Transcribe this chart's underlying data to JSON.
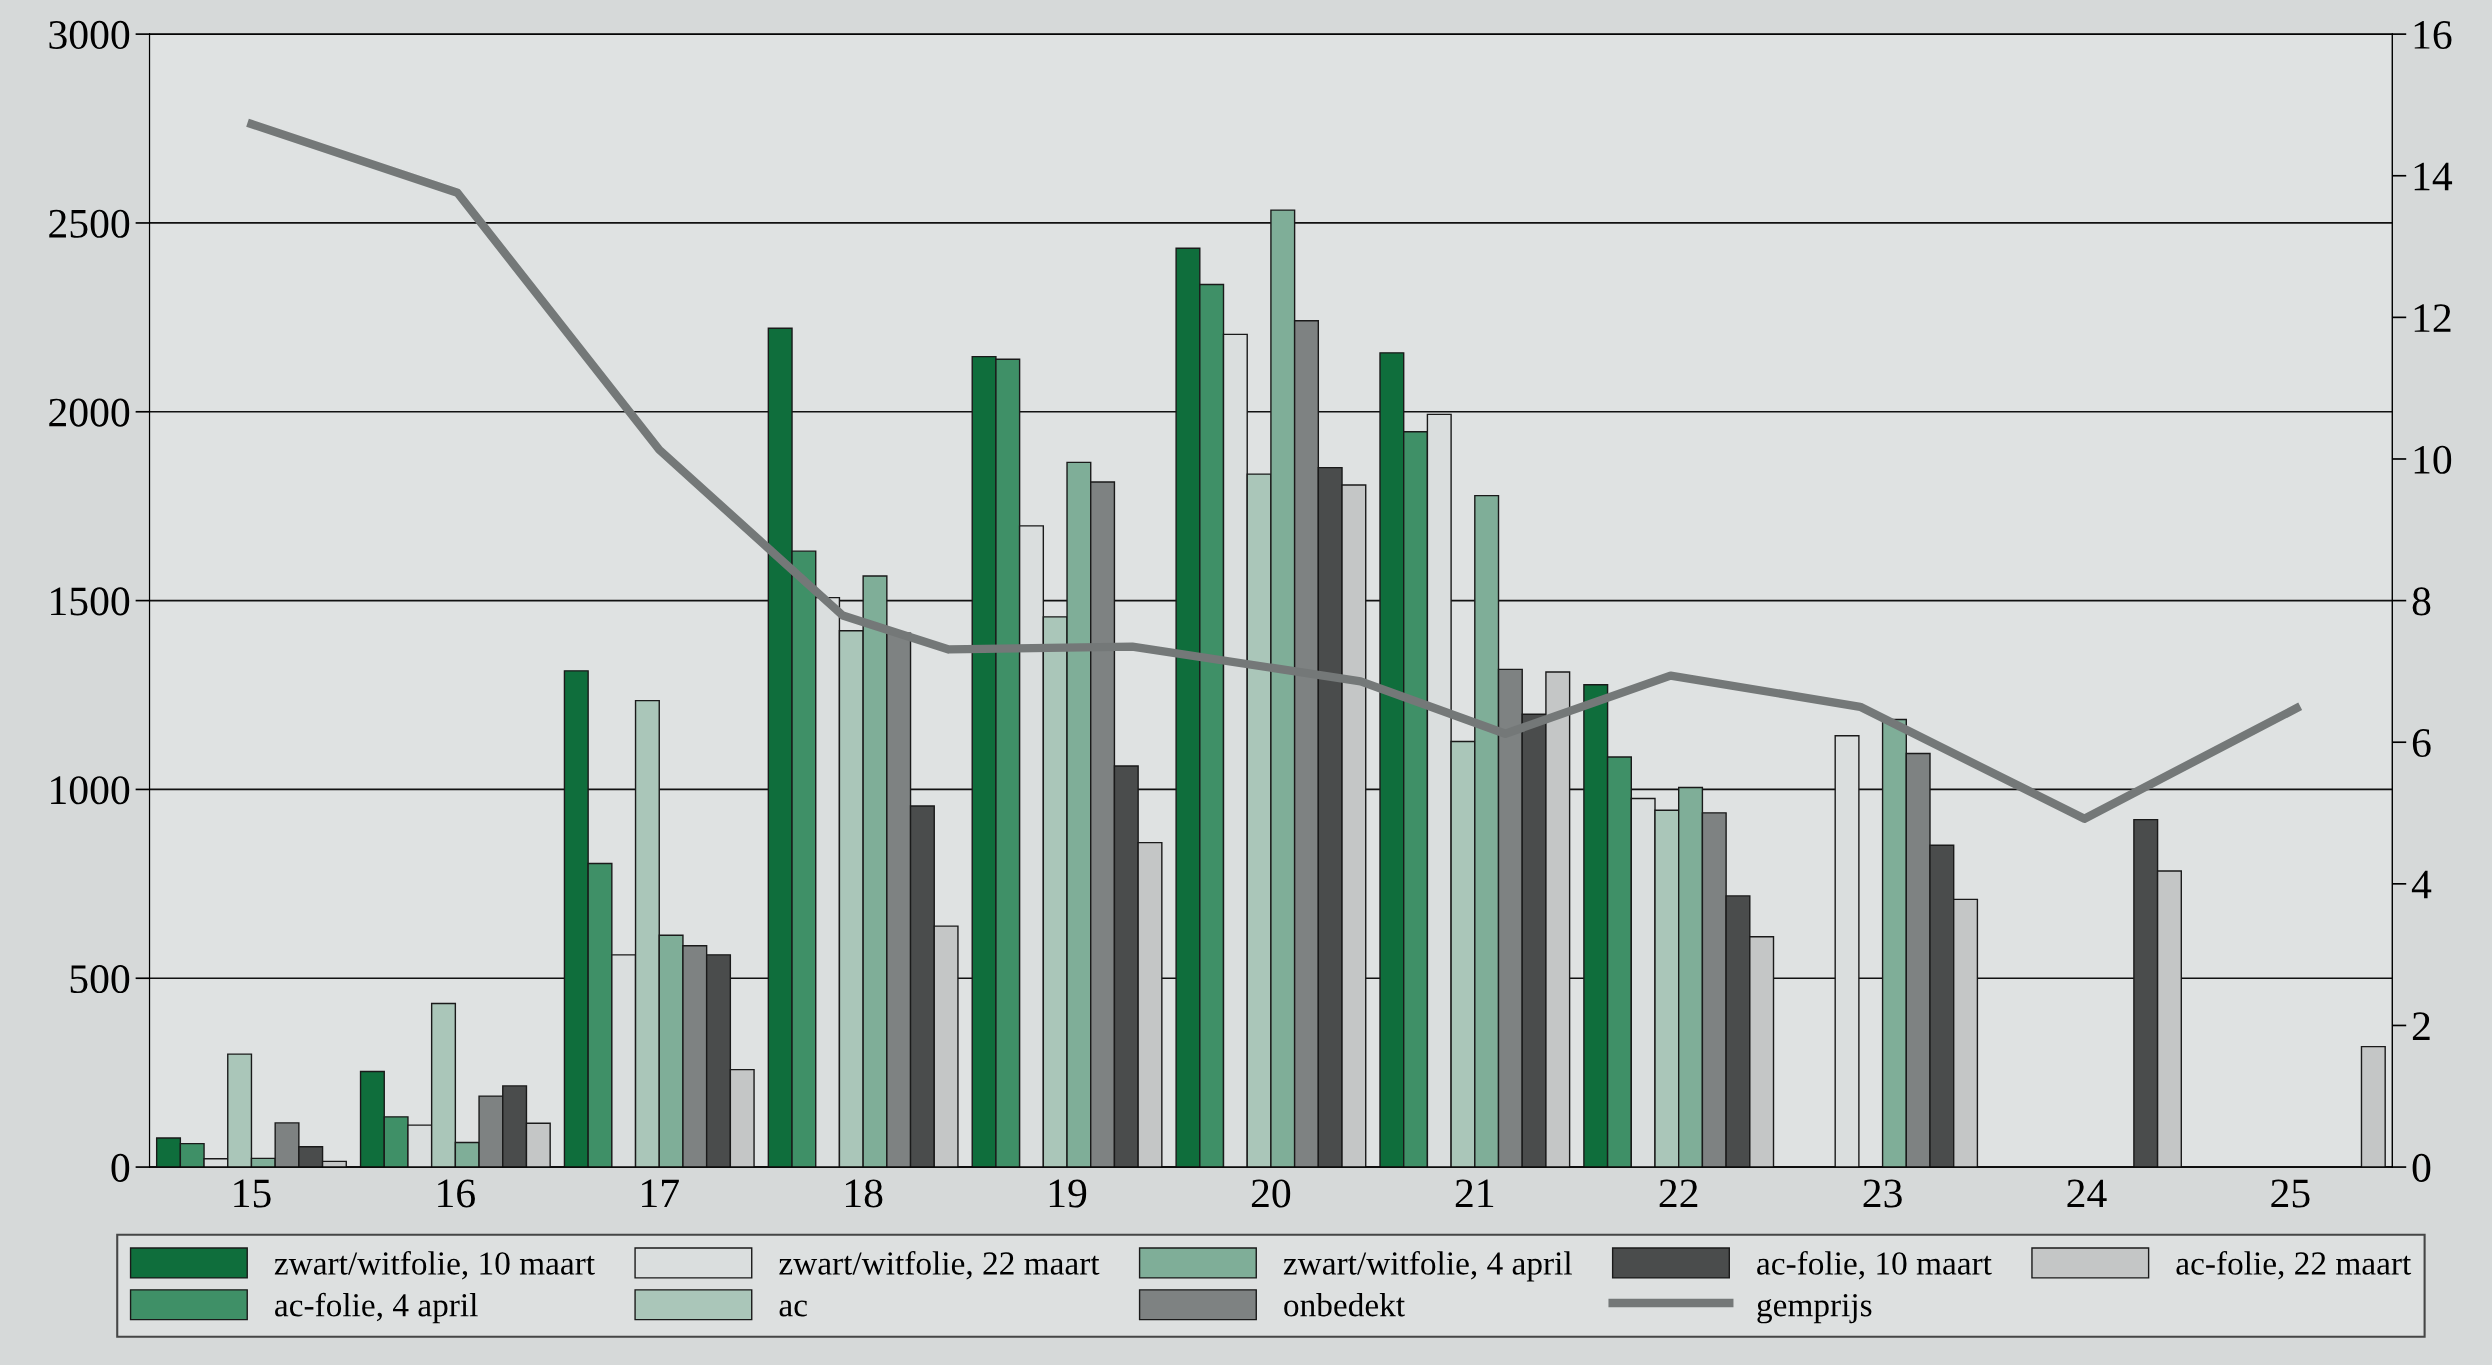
{
  "chart_data": {
    "type": "bar",
    "x": [
      15,
      16,
      17,
      18,
      19,
      20,
      21,
      22,
      23,
      24,
      25
    ],
    "xlim": [
      14.5,
      25.5
    ],
    "xticks": [
      15,
      16,
      17,
      18,
      19,
      20,
      21,
      22,
      23,
      24,
      25
    ],
    "ylim": [
      0,
      3000
    ],
    "yticks": [
      0,
      500,
      1000,
      1500,
      2000,
      2500,
      3000
    ],
    "y2lim": [
      0,
      16
    ],
    "y2ticks": [
      0,
      2,
      4,
      6,
      8,
      10,
      12,
      14,
      16
    ],
    "grid": "y",
    "legend": "bottom",
    "series": [
      {
        "name": "zwart/witfolie, 10 maart",
        "color": "#0f6e3c",
        "values": [
          77,
          253,
          1314,
          2221,
          2146,
          2433,
          2156,
          1277,
          null,
          null,
          null
        ]
      },
      {
        "name": "ac-folie, 4 april",
        "color": "#3f9067",
        "values": [
          62,
          133,
          804,
          1631,
          2139,
          2337,
          1947,
          1086,
          null,
          null,
          null
        ]
      },
      {
        "name": "zwart/witfolie, 22 maart",
        "color": "#dadede",
        "values": [
          22,
          111,
          562,
          1508,
          1698,
          2205,
          1993,
          976,
          1142,
          null,
          null
        ]
      },
      {
        "name": "ac",
        "color": "#aac6b9",
        "values": [
          299,
          433,
          1235,
          1420,
          1457,
          1835,
          1127,
          945,
          null,
          null,
          null
        ]
      },
      {
        "name": "zwart/witfolie, 4 april",
        "color": "#7fae98",
        "values": [
          23,
          65,
          614,
          1565,
          1866,
          2534,
          1778,
          1005,
          1185,
          null,
          null
        ]
      },
      {
        "name": "onbedekt",
        "color": "#7e8282",
        "values": [
          117,
          188,
          586,
          1414,
          1814,
          2241,
          1318,
          938,
          1095,
          null,
          null
        ]
      },
      {
        "name": "ac-folie, 10 maart",
        "color": "#4a4c4c",
        "values": [
          54,
          215,
          562,
          956,
          1062,
          1852,
          1199,
          718,
          852,
          920,
          null
        ]
      },
      {
        "name": "gemprijs",
        "type": "line",
        "axis": "y2",
        "color": "#747878",
        "x": [
          15.0,
          16.01,
          17.0,
          17.9,
          18.42,
          19.32,
          20.44,
          21.15,
          21.96,
          22.89,
          23.99,
          25.03
        ],
        "values": [
          14.73,
          13.76,
          10.13,
          7.79,
          7.31,
          7.35,
          6.86,
          6.12,
          6.94,
          6.5,
          4.92,
          6.48
        ]
      },
      {
        "name": "ac-folie, 22 maart",
        "color": "#c4c6c6",
        "values": [
          15,
          116,
          258,
          638,
          859,
          1806,
          1311,
          610,
          709,
          784,
          319
        ]
      }
    ]
  }
}
